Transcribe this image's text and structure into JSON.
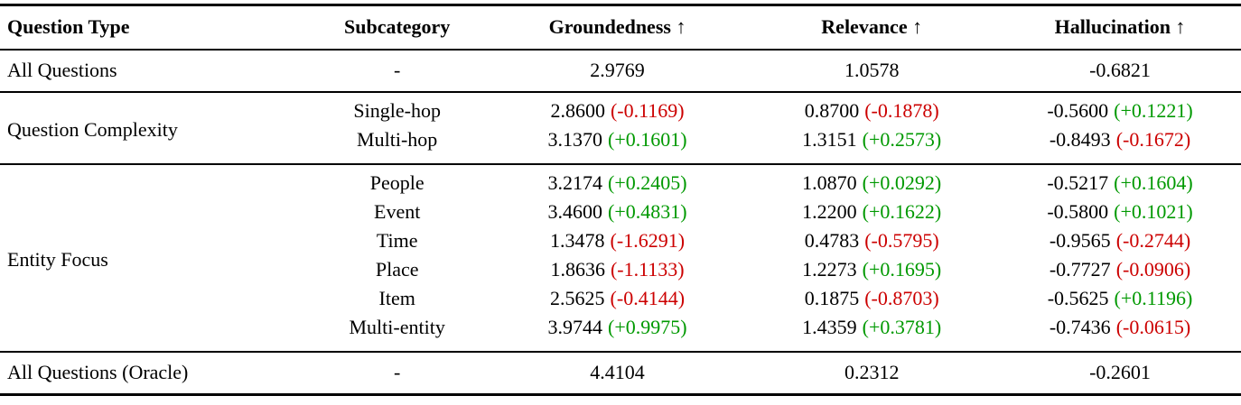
{
  "colors": {
    "positive": "#009901",
    "negative": "#cc0000",
    "text": "#000000"
  },
  "table": {
    "columns": [
      "Question Type",
      "Subcategory",
      "Groundedness ↑",
      "Relevance ↑",
      "Hallucination ↑"
    ],
    "sections": [
      {
        "label": "All Questions",
        "subcategory": "-",
        "metrics": [
          {
            "value": "2.9769"
          },
          {
            "value": "1.0578"
          },
          {
            "value": "-0.6821"
          }
        ]
      },
      {
        "label": "Question Complexity",
        "rows": [
          {
            "subcategory": "Single-hop",
            "metrics": [
              {
                "value": "2.8600",
                "delta": "(-0.1169)",
                "trend": "negative"
              },
              {
                "value": "0.8700",
                "delta": "(-0.1878)",
                "trend": "negative"
              },
              {
                "value": "-0.5600",
                "delta": "(+0.1221)",
                "trend": "positive"
              }
            ]
          },
          {
            "subcategory": "Multi-hop",
            "metrics": [
              {
                "value": "3.1370",
                "delta": "(+0.1601)",
                "trend": "positive"
              },
              {
                "value": "1.3151",
                "delta": "(+0.2573)",
                "trend": "positive"
              },
              {
                "value": "-0.8493",
                "delta": "(-0.1672)",
                "trend": "negative"
              }
            ]
          }
        ]
      },
      {
        "label": "Entity Focus",
        "rows": [
          {
            "subcategory": "People",
            "metrics": [
              {
                "value": "3.2174",
                "delta": "(+0.2405)",
                "trend": "positive"
              },
              {
                "value": "1.0870",
                "delta": "(+0.0292)",
                "trend": "positive"
              },
              {
                "value": "-0.5217",
                "delta": "(+0.1604)",
                "trend": "positive"
              }
            ]
          },
          {
            "subcategory": "Event",
            "metrics": [
              {
                "value": "3.4600",
                "delta": "(+0.4831)",
                "trend": "positive"
              },
              {
                "value": "1.2200",
                "delta": "(+0.1622)",
                "trend": "positive"
              },
              {
                "value": "-0.5800",
                "delta": "(+0.1021)",
                "trend": "positive"
              }
            ]
          },
          {
            "subcategory": "Time",
            "metrics": [
              {
                "value": "1.3478",
                "delta": "(-1.6291)",
                "trend": "negative"
              },
              {
                "value": "0.4783",
                "delta": "(-0.5795)",
                "trend": "negative"
              },
              {
                "value": "-0.9565",
                "delta": "(-0.2744)",
                "trend": "negative"
              }
            ]
          },
          {
            "subcategory": "Place",
            "metrics": [
              {
                "value": "1.8636",
                "delta": "(-1.1133)",
                "trend": "negative"
              },
              {
                "value": "1.2273",
                "delta": "(+0.1695)",
                "trend": "positive"
              },
              {
                "value": "-0.7727",
                "delta": "(-0.0906)",
                "trend": "negative"
              }
            ]
          },
          {
            "subcategory": "Item",
            "metrics": [
              {
                "value": "2.5625",
                "delta": "(-0.4144)",
                "trend": "negative"
              },
              {
                "value": "0.1875",
                "delta": "(-0.8703)",
                "trend": "negative"
              },
              {
                "value": "-0.5625",
                "delta": "(+0.1196)",
                "trend": "positive"
              }
            ]
          },
          {
            "subcategory": "Multi-entity",
            "metrics": [
              {
                "value": "3.9744",
                "delta": "(+0.9975)",
                "trend": "positive"
              },
              {
                "value": "1.4359",
                "delta": "(+0.3781)",
                "trend": "positive"
              },
              {
                "value": "-0.7436",
                "delta": "(-0.0615)",
                "trend": "negative"
              }
            ]
          }
        ]
      },
      {
        "label": "All Questions (Oracle)",
        "subcategory": "-",
        "metrics": [
          {
            "value": "4.4104"
          },
          {
            "value": "0.2312"
          },
          {
            "value": "-0.2601"
          }
        ]
      }
    ]
  }
}
